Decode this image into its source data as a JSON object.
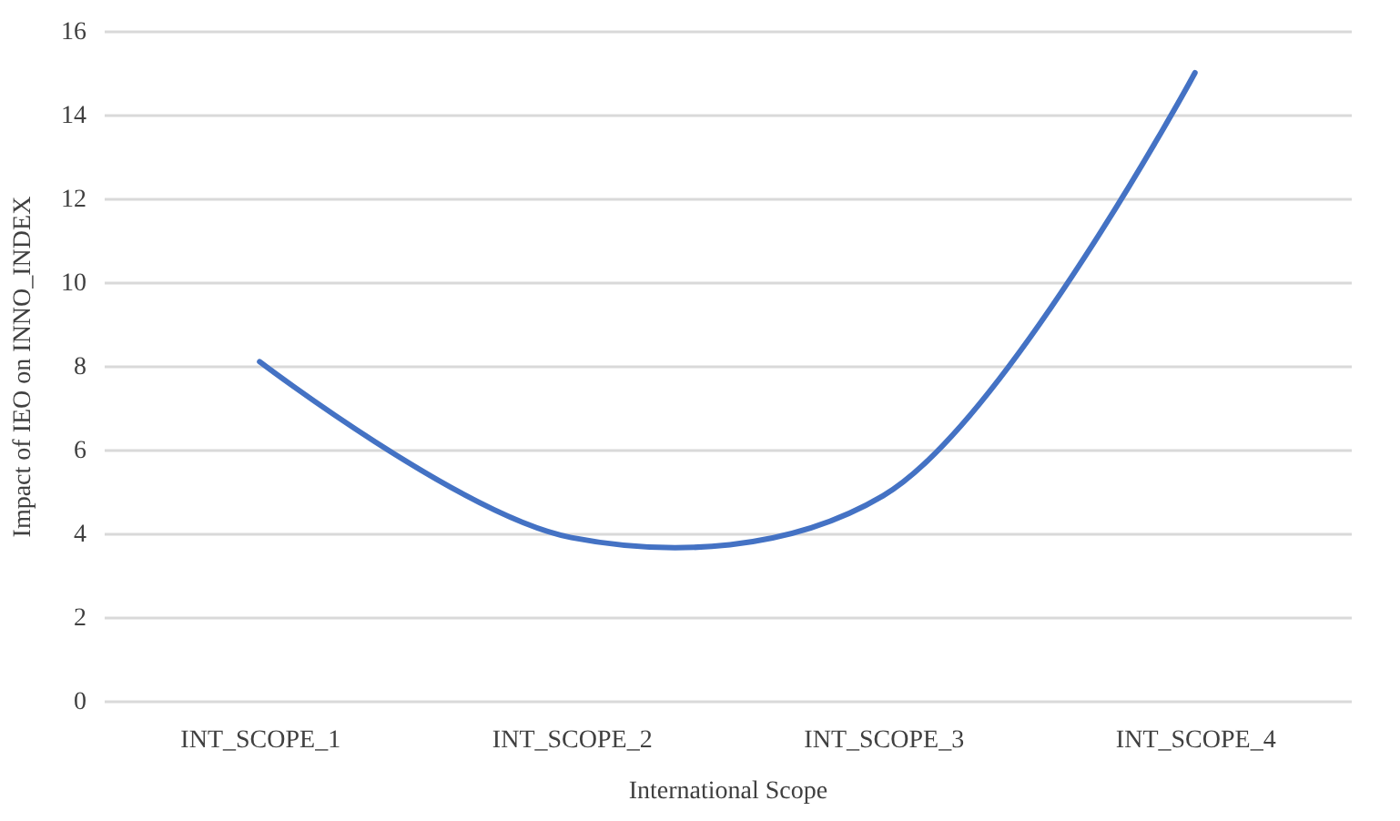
{
  "chart_data": {
    "type": "line",
    "xlabel": "International Scope",
    "ylabel": "Impact of IEO on INNO_INDEX",
    "categories": [
      "INT_SCOPE_1",
      "INT_SCOPE_2",
      "INT_SCOPE_3",
      "INT_SCOPE_4"
    ],
    "series": [
      {
        "color": "#4472c4",
        "values": [
          8.1,
          3.9,
          4.9,
          15.0
        ]
      }
    ],
    "ylim": [
      0,
      16
    ],
    "yticks": [
      0,
      2,
      4,
      6,
      8,
      10,
      12,
      14,
      16
    ],
    "grid": "y",
    "legend": false,
    "marker": "none",
    "line_style": "solid"
  }
}
